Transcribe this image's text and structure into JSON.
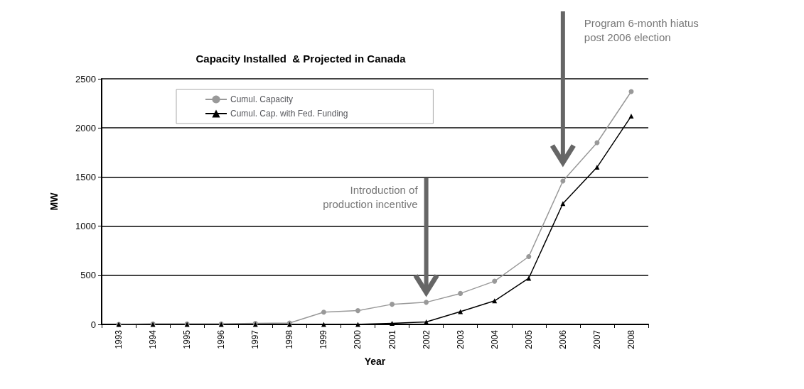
{
  "chart_data": {
    "type": "line",
    "title": "Capacity Installed  & Projected in Canada",
    "xlabel": "Year",
    "ylabel": "MW",
    "categories": [
      "1993",
      "1994",
      "1995",
      "1996",
      "1997",
      "1998",
      "1999",
      "2000",
      "2001",
      "2002",
      "2003",
      "2004",
      "2005",
      "2006",
      "2007",
      "2008"
    ],
    "series": [
      {
        "name": "Cumul. Capacity",
        "color": "#999999",
        "marker": "circle",
        "values": [
          0,
          5,
          5,
          5,
          10,
          15,
          125,
          140,
          205,
          225,
          315,
          440,
          690,
          1460,
          1850,
          2370
        ]
      },
      {
        "name": "Cumul. Cap. with Fed. Funding",
        "color": "#000000",
        "marker": "triangle",
        "values": [
          0,
          0,
          0,
          0,
          0,
          0,
          0,
          0,
          10,
          25,
          130,
          240,
          470,
          1230,
          1600,
          2120
        ]
      }
    ],
    "ylim": [
      0,
      2500
    ],
    "yticks": [
      0,
      500,
      1000,
      1500,
      2000,
      2500
    ],
    "grid": "y",
    "legend": "top left",
    "annotations": [
      "Introduction of\nproduction incentive",
      "Program 6-month hiatus\npost 2006 election"
    ]
  }
}
